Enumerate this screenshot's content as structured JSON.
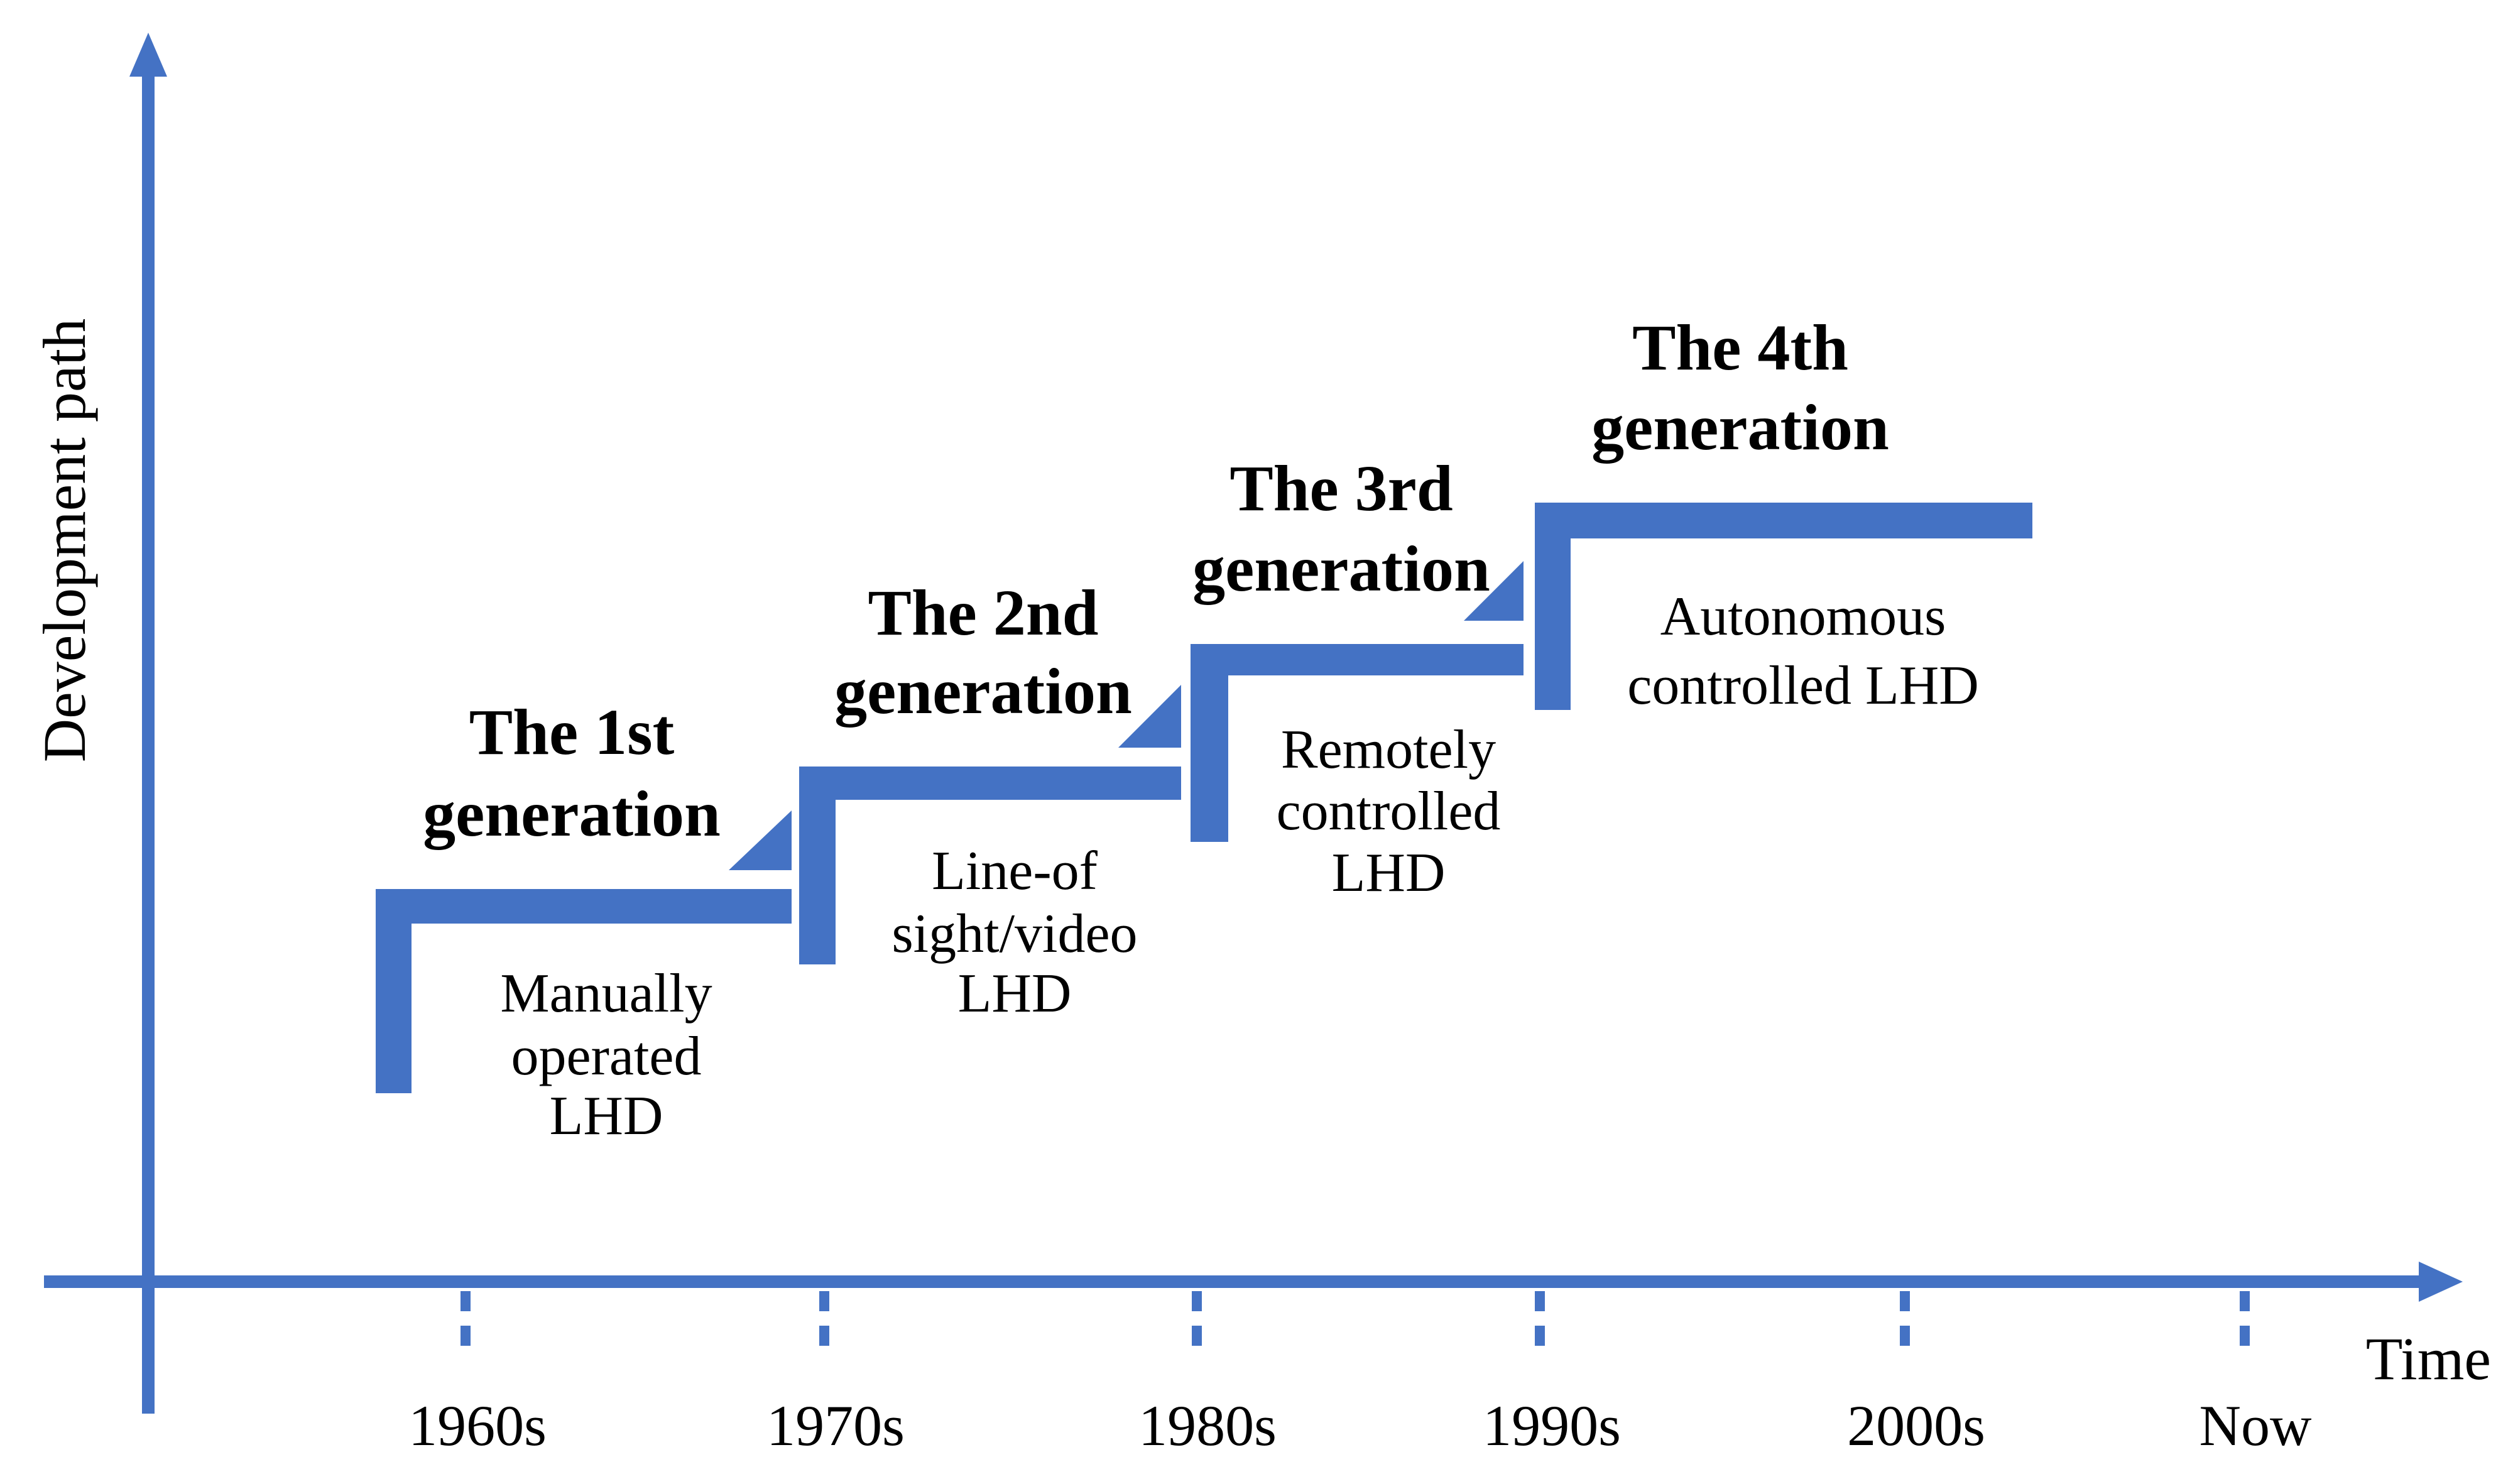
{
  "colors": {
    "accent": "#4472C4",
    "text": "#000000",
    "background": "#ffffff"
  },
  "axes": {
    "y_label": "Development path",
    "x_label": "Time",
    "x_ticks": [
      "1960s",
      "1970s",
      "1980s",
      "1990s",
      "2000s",
      "Now"
    ]
  },
  "generations": [
    {
      "title_line1": "The 1st",
      "title_line2": "generation",
      "desc": [
        "Manually",
        "operated",
        "LHD"
      ]
    },
    {
      "title_line1": "The 2nd",
      "title_line2": "generation",
      "desc": [
        "Line-of",
        "sight/video",
        "LHD"
      ]
    },
    {
      "title_line1": "The 3rd",
      "title_line2": "generation",
      "desc": [
        "Remotely",
        "controlled",
        "LHD"
      ]
    },
    {
      "title_line1": "The 4th",
      "title_line2": "generation",
      "desc": [
        "Autonomous",
        "controlled LHD"
      ]
    }
  ]
}
